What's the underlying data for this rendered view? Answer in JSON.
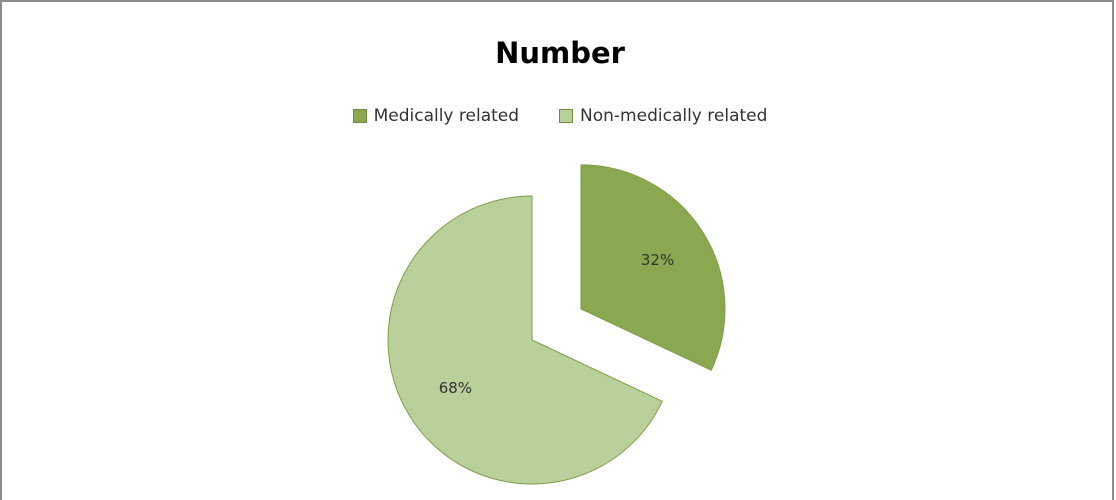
{
  "chart_data": {
    "type": "pie",
    "title": "Number",
    "slices": [
      {
        "label": "Medically related",
        "value": 32,
        "display": "32%",
        "color": "#8aa84f",
        "exploded": true
      },
      {
        "label": "Non-medically related",
        "value": 68,
        "display": "68%",
        "color": "#b9d09a",
        "exploded": false
      }
    ],
    "legend_position": "top"
  }
}
